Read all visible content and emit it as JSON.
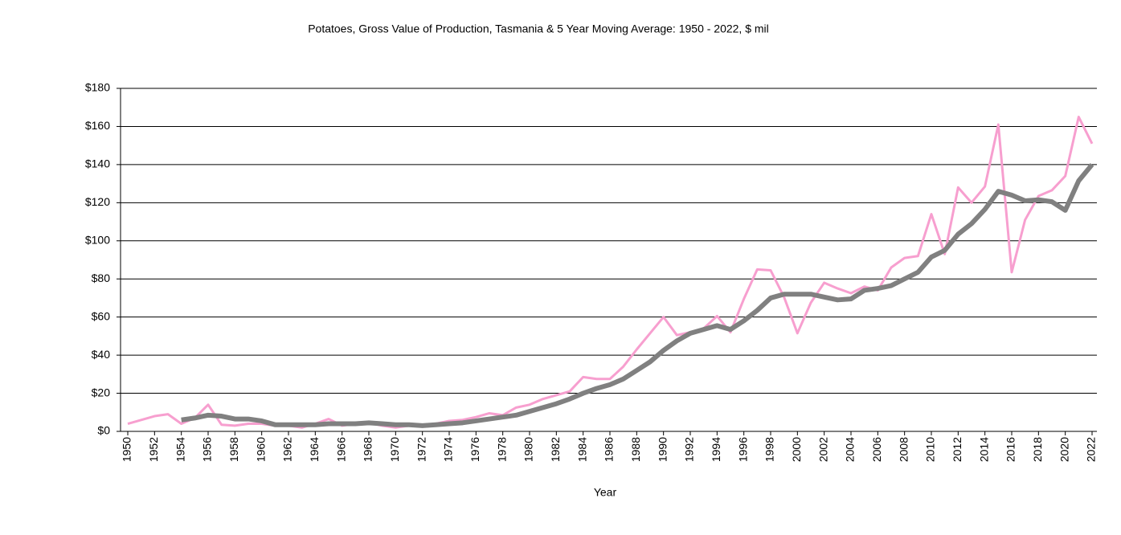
{
  "chart_data": {
    "type": "line",
    "title": "Potatoes, Gross Value of Production, Tasmania & 5 Year Moving Average: 1950 - 2022, $ mil",
    "x_label": "Year",
    "x": [
      1950,
      1951,
      1952,
      1953,
      1954,
      1955,
      1956,
      1957,
      1958,
      1959,
      1960,
      1961,
      1962,
      1963,
      1964,
      1965,
      1966,
      1967,
      1968,
      1969,
      1970,
      1971,
      1972,
      1973,
      1974,
      1975,
      1976,
      1977,
      1978,
      1979,
      1980,
      1981,
      1982,
      1983,
      1984,
      1985,
      1986,
      1987,
      1988,
      1989,
      1990,
      1991,
      1992,
      1993,
      1994,
      1995,
      1996,
      1997,
      1998,
      1999,
      2000,
      2001,
      2002,
      2003,
      2004,
      2005,
      2006,
      2007,
      2008,
      2009,
      2010,
      2011,
      2012,
      2013,
      2014,
      2015,
      2016,
      2017,
      2018,
      2019,
      2020,
      2021,
      2022
    ],
    "series": [
      {
        "color": "#f79fcf",
        "width": 3,
        "values": [
          4,
          6,
          8,
          9,
          4,
          7,
          14,
          3.5,
          3,
          4,
          4,
          3,
          3,
          2,
          4,
          6.5,
          3,
          4,
          4.5,
          3,
          2,
          3,
          3,
          4,
          5.5,
          6,
          7.5,
          9.5,
          8.5,
          12.5,
          14,
          17,
          19,
          21,
          28.5,
          27.5,
          27.5,
          34,
          43,
          51.5,
          60,
          50.5,
          52,
          54,
          60.5,
          52,
          69.5,
          85,
          84.5,
          70.5,
          51.5,
          67.5,
          78,
          75,
          72.5,
          76,
          74,
          86,
          91,
          92,
          114,
          93,
          128,
          120,
          128.5,
          161,
          83.5,
          111,
          123.5,
          126.5,
          134,
          165,
          151
        ]
      },
      {
        "color": "#808080",
        "width": 6,
        "values": [
          null,
          null,
          null,
          null,
          6,
          7,
          8.5,
          8,
          6.5,
          6.5,
          5.5,
          3.5,
          3.5,
          3.5,
          3.5,
          4,
          4,
          4,
          4.5,
          4,
          3.5,
          3.5,
          3,
          3.5,
          4,
          4.5,
          5.5,
          6.5,
          7.5,
          8.5,
          10.5,
          12.5,
          14.5,
          17,
          20,
          22.5,
          24.5,
          27.5,
          32,
          36.5,
          42.5,
          47.5,
          51.5,
          53.5,
          55.5,
          53.5,
          58,
          63.5,
          70,
          72,
          72,
          72,
          70.5,
          69,
          69.5,
          74,
          75,
          76.5,
          80,
          83.5,
          91.5,
          95,
          103.5,
          109,
          116.5,
          126,
          124,
          121,
          121.5,
          120.5,
          116,
          131.5,
          140
        ]
      }
    ],
    "xlim": [
      1950,
      2022
    ],
    "xticks": [
      1950,
      1952,
      1954,
      1956,
      1958,
      1960,
      1962,
      1964,
      1966,
      1968,
      1970,
      1972,
      1974,
      1976,
      1978,
      1980,
      1982,
      1984,
      1986,
      1988,
      1990,
      1992,
      1994,
      1996,
      1998,
      2000,
      2002,
      2004,
      2006,
      2008,
      2010,
      2012,
      2014,
      2016,
      2018,
      2020,
      2022
    ],
    "ylim": [
      0,
      180
    ],
    "yticks": [
      {
        "value": 0,
        "label": "$0"
      },
      {
        "value": 20,
        "label": "$20"
      },
      {
        "value": 40,
        "label": "$40"
      },
      {
        "value": 60,
        "label": "$60"
      },
      {
        "value": 80,
        "label": "$80"
      },
      {
        "value": 100,
        "label": "$100"
      },
      {
        "value": 120,
        "label": "$120"
      },
      {
        "value": 140,
        "label": "$140"
      },
      {
        "value": 160,
        "label": "$160"
      },
      {
        "value": 180,
        "label": "$180"
      }
    ],
    "grid": true
  }
}
